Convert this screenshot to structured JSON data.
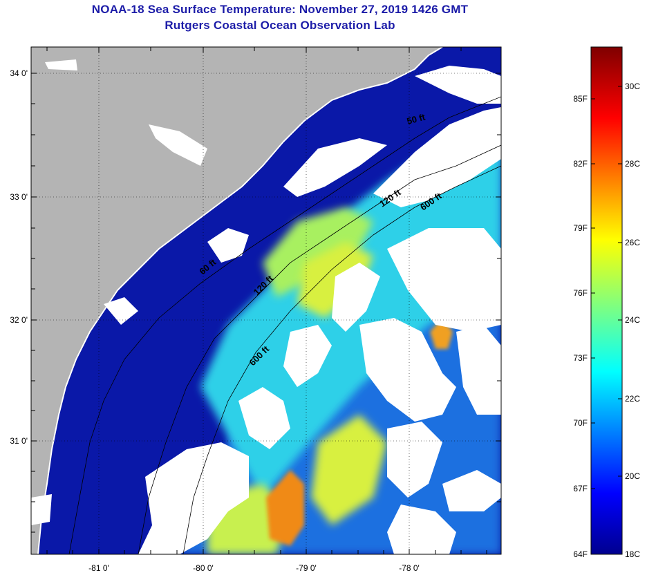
{
  "title": {
    "line1": "NOAA-18 Sea Surface Temperature:  November 27, 2019 1426 GMT",
    "line2": "Rutgers Coastal Ocean Observation Lab"
  },
  "map": {
    "lon_ticks": [
      "-81 0'",
      "-80 0'",
      "-79 0'",
      "-78 0'"
    ],
    "lat_ticks": [
      "34 0'",
      "33 0'",
      "32 0'",
      "31 0'"
    ],
    "isobaths": [
      "50 ft",
      "120 ft",
      "600 ft",
      "120 ft",
      "600 ft",
      "60 ft"
    ],
    "colors": {
      "land": "#b4b4b4",
      "cloud": "#ffffff",
      "cold_water": "#0a18a8",
      "cool_water": "#1f6fe0",
      "mid_water": "#2fd0e8",
      "warm_water": "#a8f060",
      "hot_water": "#f08a14"
    }
  },
  "colorbar": {
    "fahrenheit": [
      "85F",
      "82F",
      "79F",
      "76F",
      "73F",
      "70F",
      "67F",
      "64F"
    ],
    "celsius": [
      "30C",
      "28C",
      "26C",
      "24C",
      "22C",
      "20C",
      "18C"
    ],
    "range_c": [
      18,
      31
    ],
    "range_f": [
      64,
      88
    ]
  }
}
